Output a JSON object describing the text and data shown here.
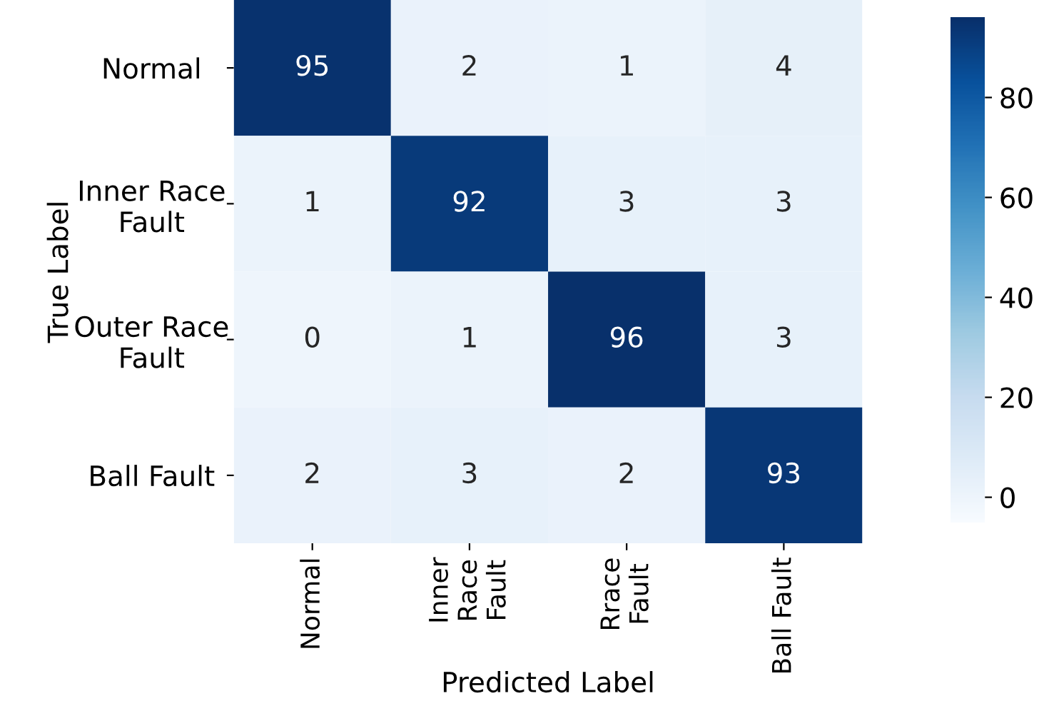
{
  "chart_data": {
    "type": "heatmap",
    "xlabel": "Predicted Label",
    "ylabel": "True Label",
    "categories": [
      "Normal",
      "Inner\nRace\nFault",
      "Rrace\nFault",
      "Ball Fault"
    ],
    "y_categories": [
      "Normal",
      "Inner Race\nFault",
      "Outer Race\nFault",
      "Ball Fault"
    ],
    "cells": [
      [
        95,
        2,
        1,
        4
      ],
      [
        1,
        92,
        3,
        3
      ],
      [
        0,
        1,
        96,
        3
      ],
      [
        2,
        3,
        2,
        93
      ]
    ],
    "data_labels": true,
    "clim": [
      -5,
      96
    ],
    "cticks": [
      0,
      20,
      40,
      60,
      80
    ]
  }
}
